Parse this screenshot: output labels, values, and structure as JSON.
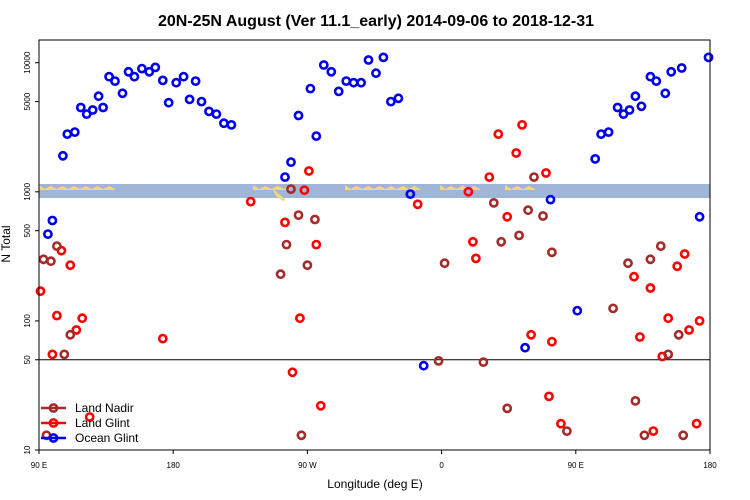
{
  "chart_data": {
    "type": "scatter",
    "title": "20N-25N August (Ver 11.1_early)   2014-09-06 to 2018-12-31",
    "xlabel": "Longitude (deg E)",
    "ylabel": "N Total",
    "x_ticks": [
      {
        "v": 90,
        "label": "90 E"
      },
      {
        "v": 180,
        "label": "180"
      },
      {
        "v": 270,
        "label": "90 W"
      },
      {
        "v": 360,
        "label": "0"
      },
      {
        "v": 450,
        "label": "90 E"
      },
      {
        "v": 540,
        "label": "180"
      }
    ],
    "xlim": [
      90,
      540
    ],
    "ylim_log": [
      10,
      15000
    ],
    "y_ticks": [
      10,
      50,
      100,
      500,
      1000,
      5000,
      10000
    ],
    "reference_lines": [
      50
    ],
    "colors": {
      "land_nadir": "#a52a2a",
      "land_glint": "#ff0000",
      "ocean_glint": "#0000ee",
      "map_ocean": "#9fb6d8",
      "map_land": "#f7d77a"
    },
    "legend": [
      "Land Nadir",
      "Land Glint",
      "Ocean Glint"
    ],
    "series": [
      {
        "name": "Ocean Glint",
        "points": [
          [
            96,
            470
          ],
          [
            99,
            600
          ],
          [
            106,
            1900
          ],
          [
            109,
            2800
          ],
          [
            114,
            2900
          ],
          [
            118,
            4500
          ],
          [
            122,
            4000
          ],
          [
            126,
            4300
          ],
          [
            130,
            5500
          ],
          [
            133,
            4500
          ],
          [
            137,
            7800
          ],
          [
            141,
            7200
          ],
          [
            146,
            5800
          ],
          [
            150,
            8500
          ],
          [
            154,
            7800
          ],
          [
            159,
            9000
          ],
          [
            164,
            8500
          ],
          [
            168,
            9200
          ],
          [
            173,
            7300
          ],
          [
            177,
            4900
          ],
          [
            182,
            7000
          ],
          [
            187,
            7800
          ],
          [
            191,
            5200
          ],
          [
            195,
            7200
          ],
          [
            199,
            5000
          ],
          [
            204,
            4200
          ],
          [
            209,
            4000
          ],
          [
            214,
            3400
          ],
          [
            219,
            3300
          ],
          [
            255,
            1300
          ],
          [
            259,
            1700
          ],
          [
            264,
            3900
          ],
          [
            272,
            6300
          ],
          [
            276,
            2700
          ],
          [
            281,
            9600
          ],
          [
            286,
            8500
          ],
          [
            291,
            6000
          ],
          [
            296,
            7200
          ],
          [
            301,
            7000
          ],
          [
            306,
            7000
          ],
          [
            311,
            10500
          ],
          [
            316,
            8300
          ],
          [
            321,
            11000
          ],
          [
            326,
            5000
          ],
          [
            331,
            5300
          ],
          [
            339,
            960
          ],
          [
            348,
            45
          ],
          [
            416,
            62
          ],
          [
            433,
            870
          ],
          [
            451,
            120
          ],
          [
            463,
            1800
          ],
          [
            467,
            2800
          ],
          [
            472,
            2900
          ],
          [
            478,
            4500
          ],
          [
            482,
            4000
          ],
          [
            486,
            4300
          ],
          [
            490,
            5500
          ],
          [
            494,
            4600
          ],
          [
            500,
            7800
          ],
          [
            504,
            7200
          ],
          [
            510,
            5800
          ],
          [
            514,
            8500
          ],
          [
            521,
            9100
          ],
          [
            533,
            640
          ],
          [
            539,
            11000
          ]
        ]
      },
      {
        "name": "Land Glint",
        "points": [
          [
            91,
            170
          ],
          [
            99,
            55
          ],
          [
            102,
            110
          ],
          [
            105,
            350
          ],
          [
            111,
            270
          ],
          [
            115,
            85
          ],
          [
            119,
            105
          ],
          [
            124,
            18
          ],
          [
            173,
            73
          ],
          [
            232,
            840
          ],
          [
            255,
            580
          ],
          [
            260,
            40
          ],
          [
            265,
            105
          ],
          [
            268,
            1030
          ],
          [
            271,
            1450
          ],
          [
            276,
            390
          ],
          [
            279,
            22
          ],
          [
            344,
            800
          ],
          [
            378,
            1000
          ],
          [
            381,
            410
          ],
          [
            383,
            305
          ],
          [
            392,
            1300
          ],
          [
            398,
            2800
          ],
          [
            404,
            640
          ],
          [
            410,
            2000
          ],
          [
            414,
            3300
          ],
          [
            420,
            78
          ],
          [
            430,
            1400
          ],
          [
            432,
            26
          ],
          [
            434,
            69
          ],
          [
            440,
            16
          ],
          [
            489,
            220
          ],
          [
            493,
            75
          ],
          [
            500,
            180
          ],
          [
            502,
            14
          ],
          [
            508,
            53
          ],
          [
            512,
            105
          ],
          [
            518,
            265
          ],
          [
            523,
            330
          ],
          [
            526,
            85
          ],
          [
            531,
            16
          ],
          [
            533,
            100
          ]
        ]
      },
      {
        "name": "Land Nadir",
        "points": [
          [
            93,
            300
          ],
          [
            95,
            13
          ],
          [
            98,
            290
          ],
          [
            102,
            380
          ],
          [
            107,
            55
          ],
          [
            111,
            78
          ],
          [
            252,
            230
          ],
          [
            256,
            390
          ],
          [
            259,
            1050
          ],
          [
            264,
            660
          ],
          [
            266,
            13
          ],
          [
            270,
            270
          ],
          [
            275,
            610
          ],
          [
            358,
            49
          ],
          [
            362,
            280
          ],
          [
            388,
            48
          ],
          [
            395,
            820
          ],
          [
            400,
            410
          ],
          [
            404,
            21
          ],
          [
            412,
            460
          ],
          [
            418,
            720
          ],
          [
            422,
            1300
          ],
          [
            428,
            650
          ],
          [
            434,
            340
          ],
          [
            444,
            14
          ],
          [
            475,
            125
          ],
          [
            485,
            280
          ],
          [
            490,
            24
          ],
          [
            496,
            13
          ],
          [
            500,
            300
          ],
          [
            507,
            380
          ],
          [
            512,
            55
          ],
          [
            519,
            78
          ],
          [
            522,
            13
          ]
        ]
      }
    ]
  }
}
